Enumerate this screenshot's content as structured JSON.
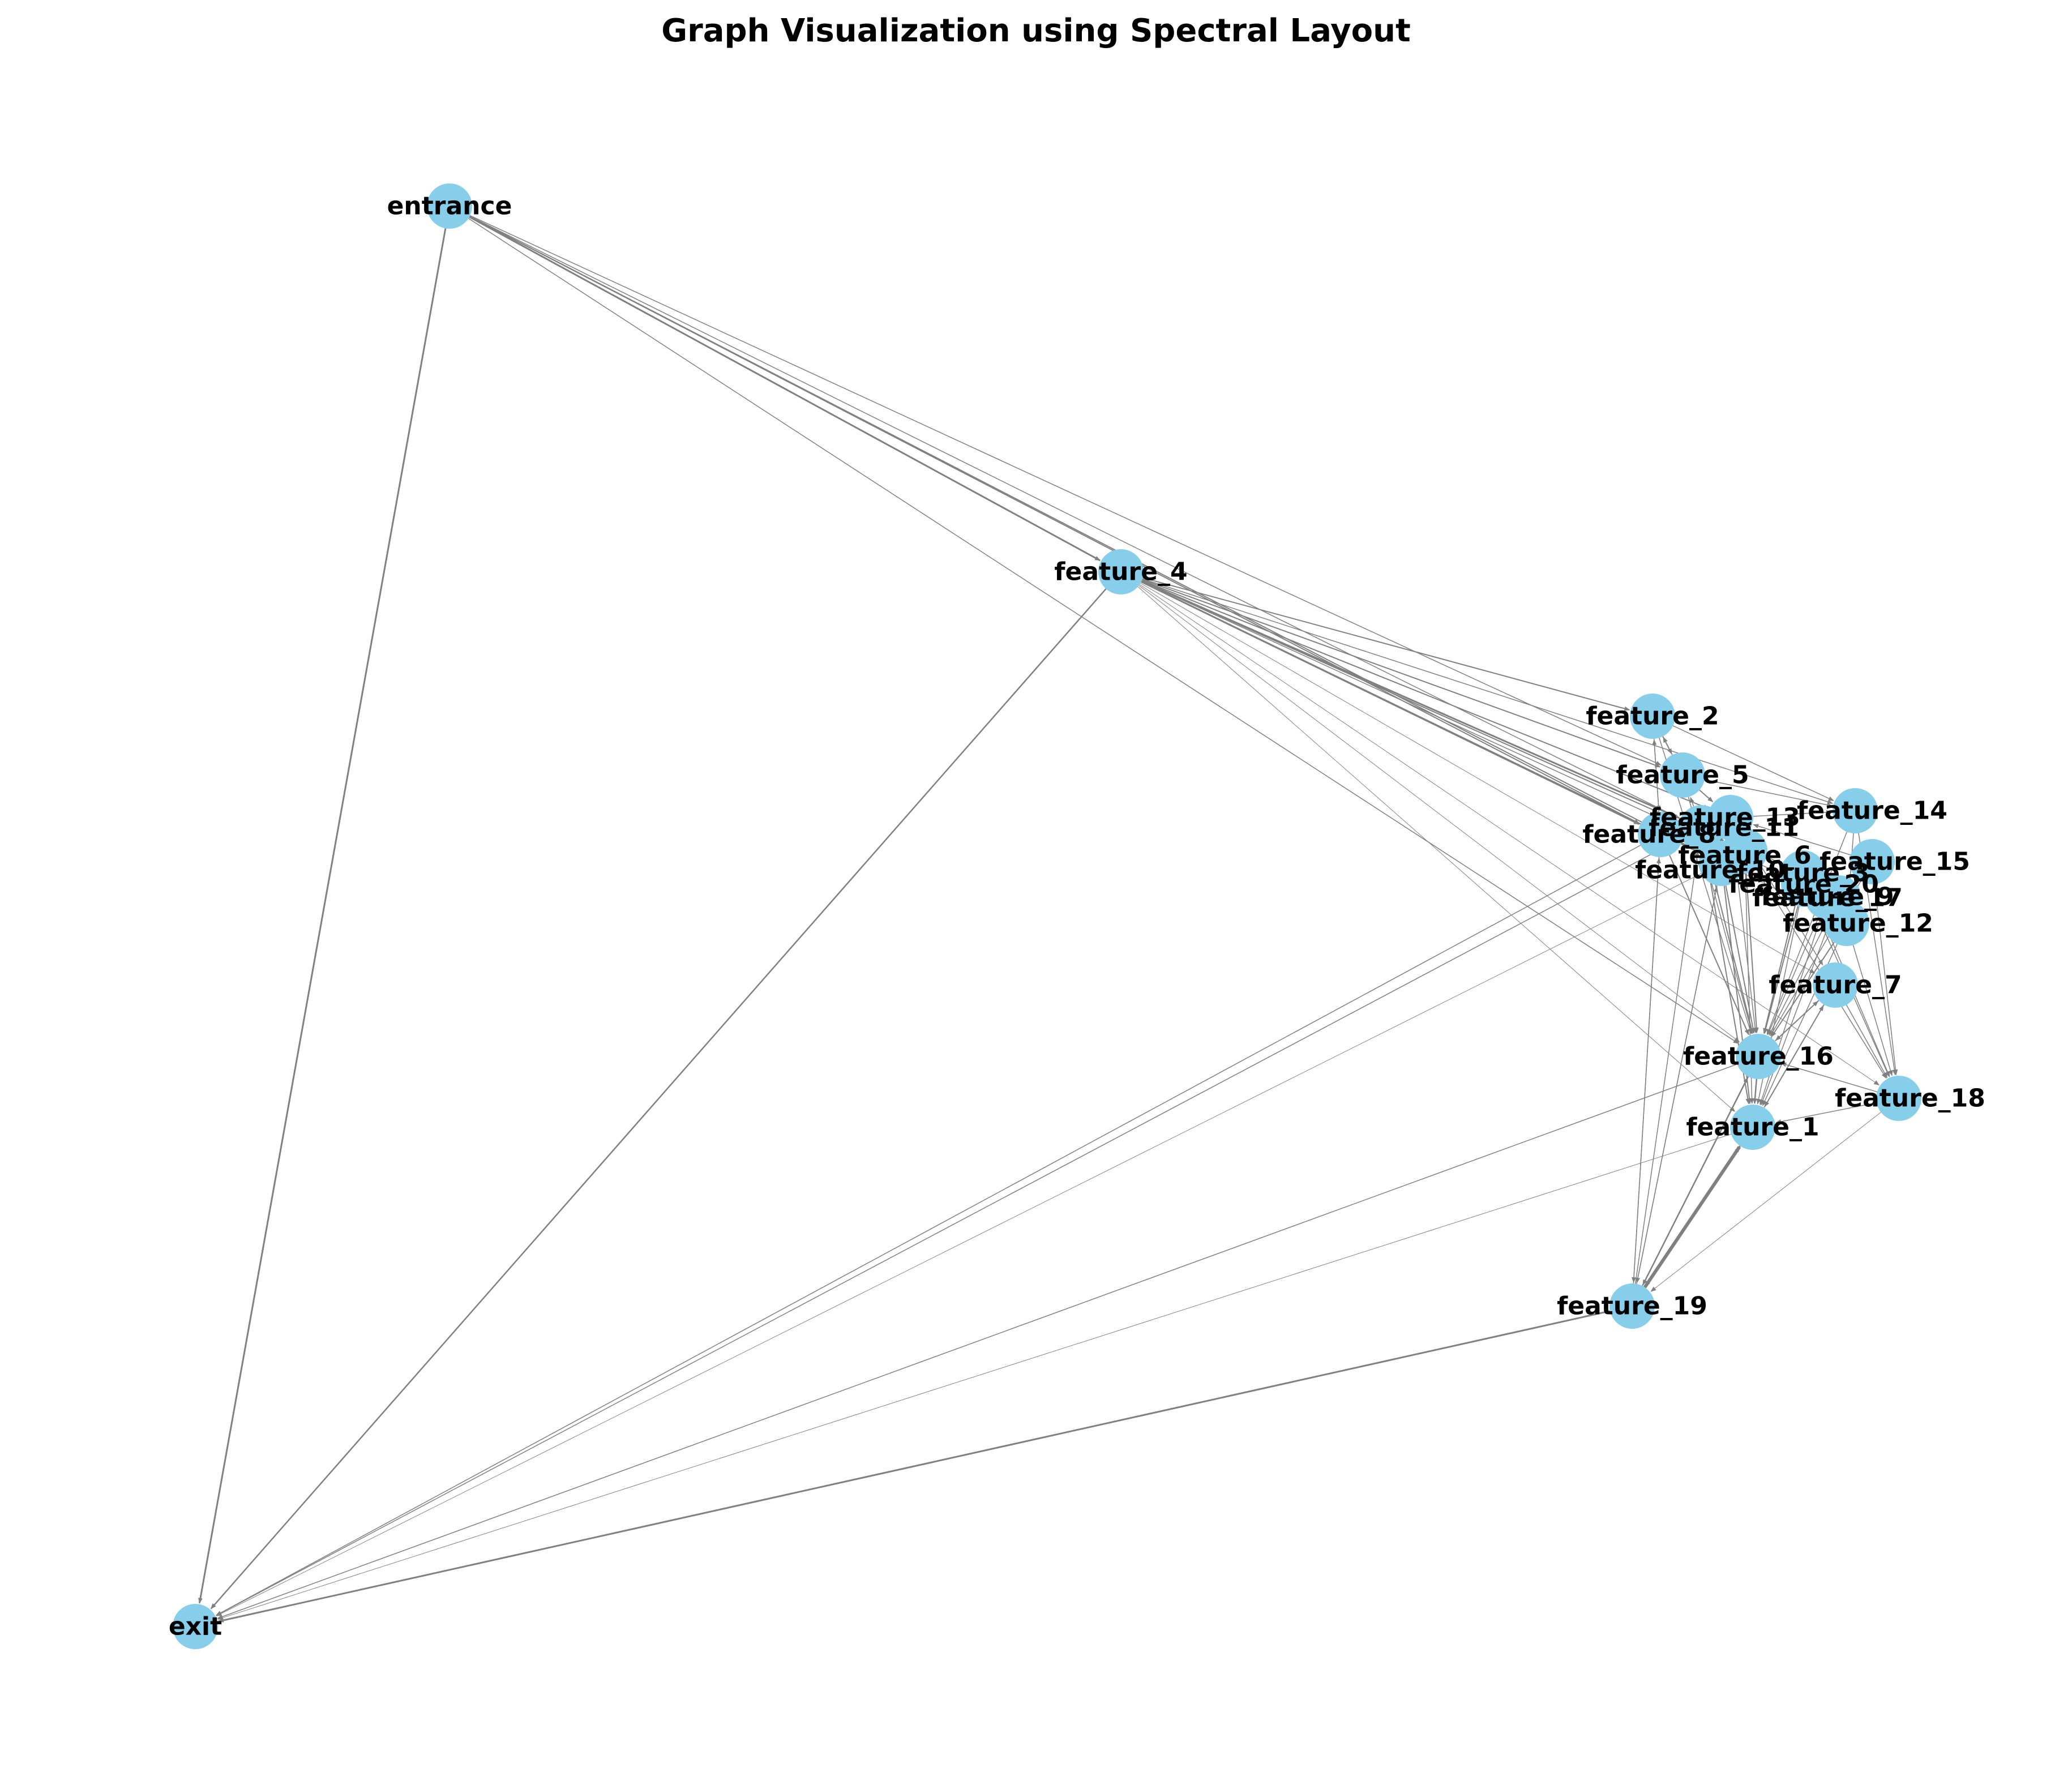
{
  "title": "Graph Visualization using Spectral Layout",
  "colors": {
    "node": "#87ceeb",
    "edge": "#808080",
    "label": "#000000",
    "background": "#ffffff"
  },
  "diagram": {
    "nodes": [
      {
        "id": "entrance",
        "label": "entrance"
      },
      {
        "id": "feature_4",
        "label": "feature_4"
      },
      {
        "id": "feature_2",
        "label": "feature_2"
      },
      {
        "id": "feature_5",
        "label": "feature_5"
      },
      {
        "id": "feature_14",
        "label": "feature_14"
      },
      {
        "id": "feature_13",
        "label": "feature_13"
      },
      {
        "id": "feature_8",
        "label": "feature_8"
      },
      {
        "id": "feature_11",
        "label": "feature_11"
      },
      {
        "id": "feature_6",
        "label": "feature_6"
      },
      {
        "id": "feature_10",
        "label": "feature_10"
      },
      {
        "id": "feature_3",
        "label": "feature_3"
      },
      {
        "id": "feature_15",
        "label": "feature_15"
      },
      {
        "id": "feature_20",
        "label": "feature_20"
      },
      {
        "id": "feature_17",
        "label": "feature_17"
      },
      {
        "id": "feature_9",
        "label": "feature_9"
      },
      {
        "id": "feature_12",
        "label": "feature_12"
      },
      {
        "id": "feature_7",
        "label": "feature_7"
      },
      {
        "id": "feature_16",
        "label": "feature_16"
      },
      {
        "id": "feature_18",
        "label": "feature_18"
      },
      {
        "id": "feature_1",
        "label": "feature_1"
      },
      {
        "id": "feature_19",
        "label": "feature_19"
      },
      {
        "id": "exit",
        "label": "exit"
      }
    ],
    "edges": [
      {
        "from": "entrance",
        "to": "exit",
        "weight": 3
      },
      {
        "from": "entrance",
        "to": "feature_4",
        "weight": 3
      },
      {
        "from": "entrance",
        "to": "feature_8",
        "weight": 2
      },
      {
        "from": "entrance",
        "to": "feature_10",
        "weight": 2
      },
      {
        "from": "entrance",
        "to": "feature_6",
        "weight": 1.5
      },
      {
        "from": "entrance",
        "to": "feature_16",
        "weight": 1.5
      },
      {
        "from": "entrance",
        "to": "feature_5",
        "weight": 1.5
      },
      {
        "from": "feature_4",
        "to": "exit",
        "weight": 2.5
      },
      {
        "from": "feature_4",
        "to": "feature_2",
        "weight": 2
      },
      {
        "from": "feature_4",
        "to": "feature_8",
        "weight": 3
      },
      {
        "from": "feature_4",
        "to": "feature_11",
        "weight": 3
      },
      {
        "from": "feature_4",
        "to": "feature_10",
        "weight": 2.5
      },
      {
        "from": "feature_4",
        "to": "feature_6",
        "weight": 2
      },
      {
        "from": "feature_4",
        "to": "feature_5",
        "weight": 2
      },
      {
        "from": "feature_4",
        "to": "feature_13",
        "weight": 2
      },
      {
        "from": "feature_4",
        "to": "feature_14",
        "weight": 1.5
      },
      {
        "from": "feature_4",
        "to": "feature_20",
        "weight": 1.5
      },
      {
        "from": "feature_4",
        "to": "feature_3",
        "weight": 1.5
      },
      {
        "from": "feature_4",
        "to": "feature_12",
        "weight": 1
      },
      {
        "from": "feature_4",
        "to": "feature_7",
        "weight": 1
      },
      {
        "from": "feature_4",
        "to": "feature_16",
        "weight": 1
      },
      {
        "from": "feature_4",
        "to": "feature_1",
        "weight": 1
      },
      {
        "from": "feature_4",
        "to": "feature_18",
        "weight": 1
      },
      {
        "from": "feature_2",
        "to": "feature_5",
        "weight": 2
      },
      {
        "from": "feature_2",
        "to": "feature_14",
        "weight": 1.5
      },
      {
        "from": "feature_2",
        "to": "feature_16",
        "weight": 1.5
      },
      {
        "from": "feature_2",
        "to": "feature_8",
        "weight": 1.5
      },
      {
        "from": "feature_5",
        "to": "feature_13",
        "weight": 2
      },
      {
        "from": "feature_5",
        "to": "feature_16",
        "weight": 1.5
      },
      {
        "from": "feature_5",
        "to": "feature_14",
        "weight": 1.5
      },
      {
        "from": "feature_5",
        "to": "feature_2",
        "weight": 1.5
      },
      {
        "from": "feature_13",
        "to": "feature_14",
        "weight": 1.5
      },
      {
        "from": "feature_13",
        "to": "feature_16",
        "weight": 1.5
      },
      {
        "from": "feature_13",
        "to": "feature_7",
        "weight": 1.5
      },
      {
        "from": "feature_8",
        "to": "exit",
        "weight": 1.5
      },
      {
        "from": "feature_8",
        "to": "feature_19",
        "weight": 1.5
      },
      {
        "from": "feature_8",
        "to": "feature_16",
        "weight": 2
      },
      {
        "from": "feature_8",
        "to": "feature_2",
        "weight": 1.5
      },
      {
        "from": "feature_11",
        "to": "exit",
        "weight": 1.5
      },
      {
        "from": "feature_11",
        "to": "feature_16",
        "weight": 2
      },
      {
        "from": "feature_11",
        "to": "feature_1",
        "weight": 2
      },
      {
        "from": "feature_11",
        "to": "feature_5",
        "weight": 1.5
      },
      {
        "from": "feature_6",
        "to": "feature_16",
        "weight": 2
      },
      {
        "from": "feature_6",
        "to": "feature_18",
        "weight": 1.5
      },
      {
        "from": "feature_6",
        "to": "feature_1",
        "weight": 1.5
      },
      {
        "from": "feature_10",
        "to": "exit",
        "weight": 1
      },
      {
        "from": "feature_10",
        "to": "feature_19",
        "weight": 1.5
      },
      {
        "from": "feature_10",
        "to": "feature_16",
        "weight": 2
      },
      {
        "from": "feature_10",
        "to": "feature_1",
        "weight": 2
      },
      {
        "from": "feature_3",
        "to": "feature_16",
        "weight": 2
      },
      {
        "from": "feature_3",
        "to": "feature_18",
        "weight": 1.5
      },
      {
        "from": "feature_15",
        "to": "feature_18",
        "weight": 1.5
      },
      {
        "from": "feature_15",
        "to": "feature_16",
        "weight": 1.5
      },
      {
        "from": "feature_15",
        "to": "feature_13",
        "weight": 1.5
      },
      {
        "from": "feature_14",
        "to": "feature_18",
        "weight": 1.5
      },
      {
        "from": "feature_14",
        "to": "feature_16",
        "weight": 1.5
      },
      {
        "from": "feature_14",
        "to": "feature_12",
        "weight": 1.5
      },
      {
        "from": "feature_20",
        "to": "feature_16",
        "weight": 2
      },
      {
        "from": "feature_20",
        "to": "feature_18",
        "weight": 1.5
      },
      {
        "from": "feature_20",
        "to": "feature_1",
        "weight": 1.5
      },
      {
        "from": "feature_17",
        "to": "feature_16",
        "weight": 1.5
      },
      {
        "from": "feature_17",
        "to": "feature_1",
        "weight": 1.5
      },
      {
        "from": "feature_9",
        "to": "feature_16",
        "weight": 1.5
      },
      {
        "from": "feature_9",
        "to": "feature_1",
        "weight": 1.5
      },
      {
        "from": "feature_12",
        "to": "feature_16",
        "weight": 2
      },
      {
        "from": "feature_12",
        "to": "feature_1",
        "weight": 1.5
      },
      {
        "from": "feature_12",
        "to": "feature_18",
        "weight": 1.5
      },
      {
        "from": "feature_7",
        "to": "feature_16",
        "weight": 2
      },
      {
        "from": "feature_7",
        "to": "feature_1",
        "weight": 2
      },
      {
        "from": "feature_7",
        "to": "feature_18",
        "weight": 1.5
      },
      {
        "from": "feature_16",
        "to": "feature_1",
        "weight": 2.5
      },
      {
        "from": "feature_16",
        "to": "feature_19",
        "weight": 2.5
      },
      {
        "from": "feature_16",
        "to": "exit",
        "weight": 1.5
      },
      {
        "from": "feature_16",
        "to": "feature_7",
        "weight": 1.5
      },
      {
        "from": "feature_18",
        "to": "feature_1",
        "weight": 1.5
      },
      {
        "from": "feature_18",
        "to": "feature_19",
        "weight": 1
      },
      {
        "from": "feature_18",
        "to": "feature_16",
        "weight": 1.5
      },
      {
        "from": "feature_1",
        "to": "feature_19",
        "weight": 3
      },
      {
        "from": "feature_1",
        "to": "exit",
        "weight": 1
      },
      {
        "from": "feature_1",
        "to": "feature_7",
        "weight": 1.5
      },
      {
        "from": "feature_19",
        "to": "exit",
        "weight": 3
      },
      {
        "from": "feature_19",
        "to": "feature_1",
        "weight": 6
      },
      {
        "from": "feature_19",
        "to": "feature_16",
        "weight": 2
      },
      {
        "from": "feature_19",
        "to": "feature_8",
        "weight": 1.5
      },
      {
        "from": "feature_19",
        "to": "feature_11",
        "weight": 1.5
      },
      {
        "from": "feature_19",
        "to": "feature_10",
        "weight": 1.5
      }
    ]
  }
}
